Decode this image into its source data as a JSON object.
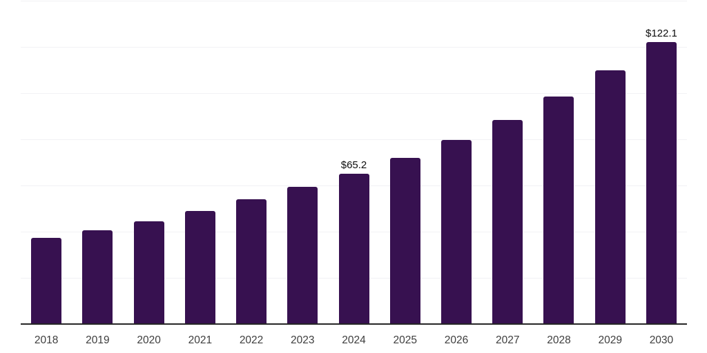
{
  "chart_data": {
    "type": "bar",
    "title": "",
    "xlabel": "",
    "ylabel": "",
    "categories": [
      "2018",
      "2019",
      "2020",
      "2021",
      "2022",
      "2023",
      "2024",
      "2025",
      "2026",
      "2027",
      "2028",
      "2029",
      "2030"
    ],
    "values": [
      37.3,
      40.6,
      44.4,
      48.9,
      53.9,
      59.3,
      65.2,
      72.0,
      79.8,
      88.5,
      98.6,
      109.8,
      122.1
    ],
    "labeled_points": [
      {
        "category": "2024",
        "label": "$65.2"
      },
      {
        "category": "2030",
        "label": "$122.1"
      }
    ],
    "ylim": [
      0,
      140
    ],
    "gridline_interval": 20,
    "grid": "horizontal-only",
    "legend": "none",
    "colors": {
      "bar": "#371150",
      "gridline": "#f1f1f4",
      "axis_line": "#262626",
      "value_label": "#0d0d0d",
      "tick_label": "#3d3d3d",
      "background": "#ffffff"
    }
  }
}
